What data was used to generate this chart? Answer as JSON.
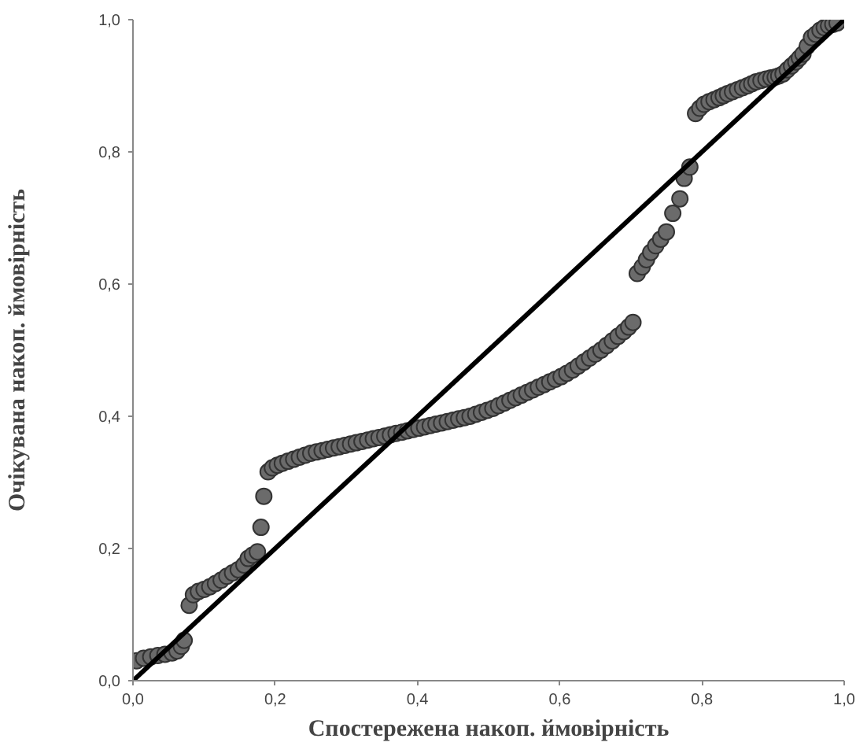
{
  "chart_data": {
    "type": "scatter",
    "xlabel": "Спостережена накоп. ймовірність",
    "ylabel": "Очікувана накоп. ймовірність",
    "xlim": [
      0,
      1
    ],
    "ylim": [
      0,
      1
    ],
    "xticks": [
      {
        "value": 0,
        "label": "0,0"
      },
      {
        "value": 0.2,
        "label": "0,2"
      },
      {
        "value": 0.4,
        "label": "0,4"
      },
      {
        "value": 0.6,
        "label": "0,6"
      },
      {
        "value": 0.8,
        "label": "0,8"
      },
      {
        "value": 1,
        "label": "1,0"
      }
    ],
    "yticks": [
      {
        "value": 0,
        "label": "0,0"
      },
      {
        "value": 0.2,
        "label": "0,2"
      },
      {
        "value": 0.4,
        "label": "0,4"
      },
      {
        "value": 0.6,
        "label": "0,6"
      },
      {
        "value": 0.8,
        "label": "0,8"
      },
      {
        "value": 1,
        "label": "1,0"
      }
    ],
    "grid": false,
    "series": [
      {
        "marker": "circle",
        "color": "#6b6b6b",
        "x": [
          0.005,
          0.015,
          0.025,
          0.035,
          0.045,
          0.055,
          0.062,
          0.068,
          0.072,
          0.079,
          0.085,
          0.092,
          0.1,
          0.108,
          0.116,
          0.124,
          0.132,
          0.14,
          0.148,
          0.156,
          0.162,
          0.168,
          0.175,
          0.18,
          0.184,
          0.19,
          0.196,
          0.203,
          0.21,
          0.218,
          0.226,
          0.234,
          0.242,
          0.25,
          0.258,
          0.266,
          0.274,
          0.282,
          0.29,
          0.298,
          0.306,
          0.314,
          0.322,
          0.33,
          0.338,
          0.346,
          0.354,
          0.362,
          0.37,
          0.378,
          0.386,
          0.394,
          0.402,
          0.41,
          0.418,
          0.426,
          0.434,
          0.442,
          0.45,
          0.458,
          0.466,
          0.474,
          0.482,
          0.49,
          0.498,
          0.506,
          0.514,
          0.522,
          0.53,
          0.538,
          0.546,
          0.554,
          0.562,
          0.57,
          0.578,
          0.586,
          0.594,
          0.602,
          0.61,
          0.618,
          0.626,
          0.634,
          0.642,
          0.65,
          0.658,
          0.666,
          0.674,
          0.682,
          0.69,
          0.697,
          0.703,
          0.709,
          0.716,
          0.722,
          0.728,
          0.735,
          0.742,
          0.75,
          0.759,
          0.769,
          0.775,
          0.783,
          0.791,
          0.797,
          0.803,
          0.81,
          0.817,
          0.824,
          0.83,
          0.836,
          0.843,
          0.85,
          0.857,
          0.864,
          0.87,
          0.876,
          0.883,
          0.89,
          0.897,
          0.903,
          0.908,
          0.914,
          0.92,
          0.926,
          0.932,
          0.937,
          0.942,
          0.948,
          0.954,
          0.96,
          0.966,
          0.972,
          0.978,
          0.984,
          0.99
        ],
        "values": [
          0.03,
          0.034,
          0.036,
          0.038,
          0.04,
          0.042,
          0.045,
          0.052,
          0.061,
          0.114,
          0.13,
          0.135,
          0.138,
          0.142,
          0.147,
          0.152,
          0.158,
          0.163,
          0.168,
          0.175,
          0.185,
          0.19,
          0.195,
          0.232,
          0.279,
          0.316,
          0.322,
          0.326,
          0.329,
          0.332,
          0.335,
          0.338,
          0.341,
          0.344,
          0.346,
          0.348,
          0.35,
          0.352,
          0.354,
          0.356,
          0.358,
          0.36,
          0.362,
          0.364,
          0.366,
          0.368,
          0.37,
          0.372,
          0.374,
          0.376,
          0.378,
          0.38,
          0.382,
          0.384,
          0.386,
          0.388,
          0.39,
          0.392,
          0.394,
          0.396,
          0.398,
          0.4,
          0.403,
          0.406,
          0.409,
          0.412,
          0.416,
          0.42,
          0.424,
          0.428,
          0.432,
          0.436,
          0.44,
          0.444,
          0.448,
          0.452,
          0.456,
          0.46,
          0.465,
          0.47,
          0.476,
          0.482,
          0.488,
          0.494,
          0.5,
          0.507,
          0.514,
          0.521,
          0.528,
          0.535,
          0.542,
          0.616,
          0.626,
          0.637,
          0.648,
          0.658,
          0.668,
          0.679,
          0.707,
          0.729,
          0.76,
          0.777,
          0.858,
          0.866,
          0.872,
          0.876,
          0.879,
          0.882,
          0.885,
          0.888,
          0.891,
          0.894,
          0.897,
          0.9,
          0.903,
          0.906,
          0.908,
          0.91,
          0.912,
          0.913,
          0.915,
          0.918,
          0.924,
          0.93,
          0.936,
          0.942,
          0.948,
          0.96,
          0.973,
          0.978,
          0.984,
          0.988,
          0.991,
          0.993,
          0.995
        ]
      },
      {
        "type": "line",
        "color": "#000000",
        "x": [
          0,
          1
        ],
        "values": [
          0,
          1
        ]
      }
    ]
  }
}
